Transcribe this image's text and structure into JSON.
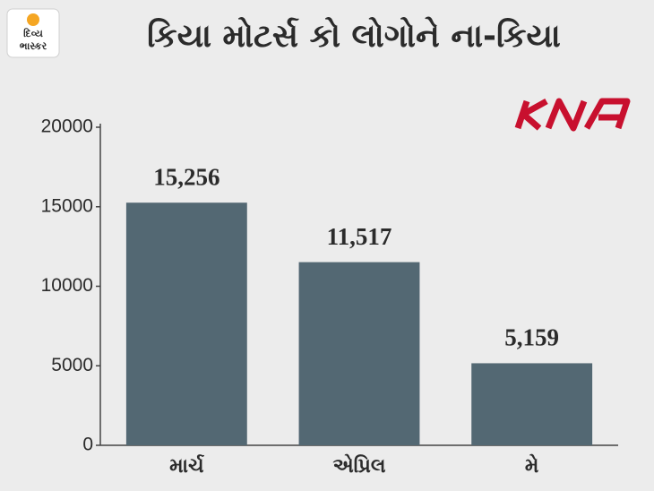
{
  "brand": [
    "દિવ્ય",
    "ભાસ્કર"
  ],
  "chart_data": {
    "type": "bar",
    "title": "કિયા મોટર્સ કો લોગોને ના-કિયા",
    "categories": [
      "માર્ચ",
      "એપ્રિલ",
      "મે"
    ],
    "values": [
      15256,
      11517,
      5159
    ],
    "value_labels": [
      "15,256",
      "11,517",
      "5,159"
    ],
    "color": "#536873",
    "ylim": [
      0,
      20000
    ],
    "yticks": [
      0,
      5000,
      10000,
      15000,
      20000
    ],
    "grid": false
  }
}
